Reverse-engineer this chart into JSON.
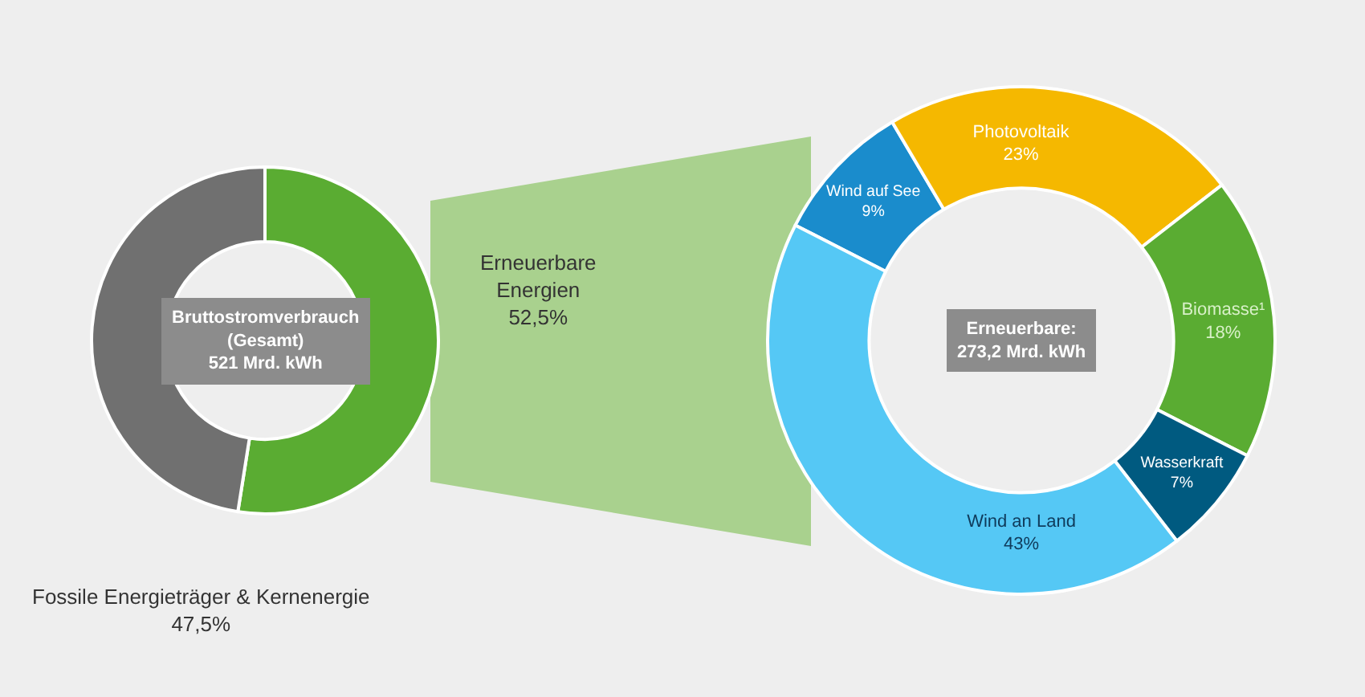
{
  "chart_data": [
    {
      "type": "donut",
      "categories": [
        "Erneuerbare Energien",
        "Fossile Energieträger & Kernenergie"
      ],
      "values": [
        52.5,
        47.5
      ],
      "value_labels": [
        "52,5%",
        "47,5%"
      ],
      "colors": [
        "#5aac32",
        "#707070"
      ],
      "annotations": [
        "Bruttostromverbrauch\n(Gesamt)\n521 Mrd. kWh"
      ]
    },
    {
      "type": "donut",
      "categories": [
        "Wind auf See",
        "Photovoltaik",
        "Biomasse¹",
        "Wasserkraft",
        "Wind an Land"
      ],
      "values": [
        9,
        23,
        18,
        7,
        43
      ],
      "value_labels": [
        "9%",
        "23%",
        "18%",
        "7%",
        "43%"
      ],
      "colors": [
        "#1a8ccc",
        "#f5b800",
        "#5aac32",
        "#005a80",
        "#55c8f5"
      ],
      "annotations": [
        "Erneuerbare:\n273,2 Mrd. kWh"
      ]
    }
  ]
}
